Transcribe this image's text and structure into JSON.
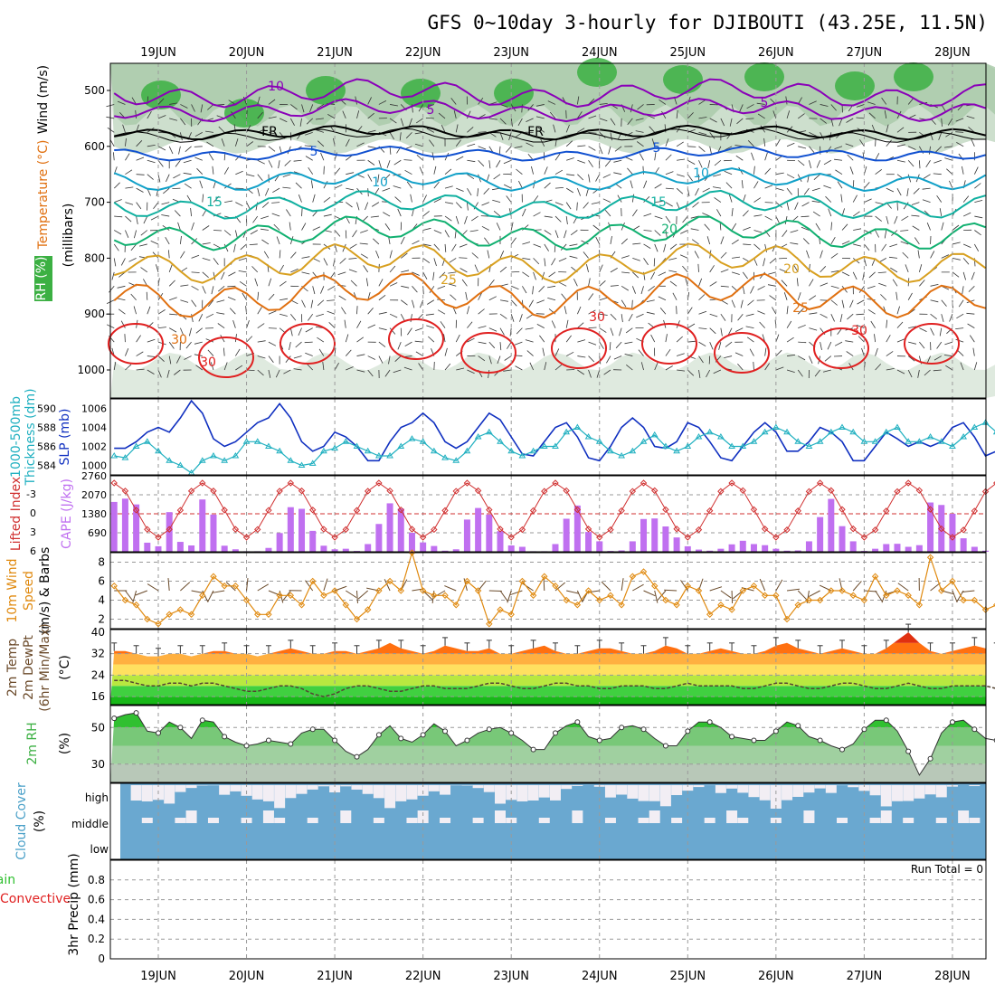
{
  "title": "GFS 0~10day 3-hourly for DJIBOUTI (43.25E, 11.5N)",
  "dates": [
    "19JUN",
    "20JUN",
    "21JUN",
    "22JUN",
    "23JUN",
    "24JUN",
    "25JUN",
    "26JUN",
    "27JUN",
    "28JUN"
  ],
  "colors": {
    "rh_green": "#3cb043",
    "rh_light": "#cfe3cf",
    "t_purple": "#8a00b8",
    "t_black": "#000000",
    "t_blue": "#1050d0",
    "t_cyan": "#10a0c8",
    "t_teal": "#10b0a0",
    "t_green": "#10b070",
    "t_gold": "#d8a020",
    "t_orange": "#e07010",
    "t_red": "#e02020",
    "slp": "#1030c0",
    "thick": "#20b0c0",
    "cape": "#c070f0",
    "li": "#d03030",
    "wind10": "#e08a10",
    "cloud": "#6aa8d0",
    "cloud_clear": "#f2eef4"
  },
  "panels": {
    "upper": {
      "label_rh": "RH (%)",
      "label_temp": "Temperature (°C)",
      "label_wind": "Wind (m/s)",
      "label_units": "(millibars)",
      "yticks": [
        "500",
        "600",
        "700",
        "800",
        "900",
        "1000"
      ],
      "contour_labels": [
        "10",
        "5",
        "FR",
        "5",
        "10",
        "15",
        "20",
        "25",
        "30",
        "5",
        "FR",
        "5",
        "10",
        "15",
        "20",
        "25",
        "30",
        "30",
        "30"
      ]
    },
    "slp": {
      "label_left": "1000-500mb",
      "label_left2": "Thickness (dm)",
      "label_right": "SLP (mb)",
      "yticks_left": [
        "590",
        "588",
        "586",
        "584"
      ],
      "yticks_right": [
        "1006",
        "1004",
        "1002",
        "1000"
      ]
    },
    "cape": {
      "label_li": "Lifted Index",
      "label_cape": "CAPE (J/kg)",
      "yticks_li": [
        "-3",
        "0",
        "3",
        "6"
      ],
      "yticks_cape": [
        "2760",
        "2070",
        "1380",
        "690"
      ]
    },
    "wind10": {
      "label1": "10m Wind",
      "label2": "Speed",
      "label3": "(m/s) & Barbs",
      "yticks": [
        "8",
        "6",
        "4",
        "2"
      ]
    },
    "temp2m": {
      "label1": "2m Temp",
      "label2": "2m DewPt",
      "label3": "(6hr Min/Max)",
      "label4": "(°C)",
      "yticks": [
        "40",
        "32",
        "24",
        "16"
      ]
    },
    "rh2m": {
      "label1": "2m RH",
      "label2": "(%)",
      "yticks": [
        "50",
        "30"
      ]
    },
    "cloud": {
      "label1": "Cloud Cover",
      "label2": "(%)",
      "levels": [
        "high",
        "middle",
        "low"
      ]
    },
    "precip": {
      "label1": "Total / Rain",
      "label2": "Convective",
      "label3": "3hr Precip (mm)",
      "yticks": [
        "0.8",
        "0.6",
        "0.4",
        "0.2",
        "0"
      ],
      "run_total": "Run Total = 0"
    }
  },
  "chart_data": {
    "type": "line",
    "x_start": "18JUN 12Z",
    "x_step_hours": 3,
    "series": [
      {
        "name": "SLP (mb)",
        "values": [
          1001.8,
          1001.8,
          1002.5,
          1003.5,
          1004.0,
          1003.5,
          1005.0,
          1006.8,
          1005.5,
          1002.8,
          1002.0,
          1002.5,
          1003.5,
          1004.5,
          1005.0,
          1006.5,
          1005.0,
          1002.5,
          1001.5,
          1002.0,
          1003.5,
          1003.0,
          1002.0,
          1000.5,
          1000.5,
          1002.5,
          1004.0,
          1004.5,
          1005.5,
          1004.5,
          1002.5,
          1001.8,
          1002.5,
          1004.0,
          1005.5,
          1004.8,
          1003.0,
          1001.2,
          1001.0,
          1002.5,
          1004.0,
          1004.5,
          1003.0,
          1000.8,
          1000.5,
          1002.0,
          1004.0,
          1005.0,
          1004.0,
          1002.0,
          1001.8,
          1002.5,
          1004.5,
          1004.0,
          1002.5,
          1000.8,
          1000.5,
          1002.0,
          1003.5,
          1004.5,
          1003.5,
          1001.5,
          1001.5,
          1002.5,
          1004.0,
          1003.5,
          1002.5,
          1000.5,
          1000.5,
          1002.0,
          1003.5,
          1002.8,
          1002.0,
          1002.5,
          1002.0,
          1002.5,
          1004.0,
          1004.5,
          1003.0,
          1001.0,
          1001.5,
          1003.0,
          1002.5,
          1002.0,
          1000.5,
          1000.0,
          1002.0,
          1002.5,
          1002.0,
          1001.0,
          1000.0,
          1000.5,
          1001.5
        ]
      },
      {
        "name": "1000-500mb Thickness (dm)",
        "values": [
          585.0,
          584.8,
          586.0,
          586.5,
          585.5,
          584.5,
          584.0,
          583.2,
          584.5,
          585.0,
          584.5,
          585.0,
          586.5,
          586.5,
          586.0,
          585.5,
          584.5,
          584.0,
          584.2,
          585.5,
          585.8,
          586.5,
          586.0,
          585.5,
          585.0,
          585.0,
          586.0,
          586.8,
          586.5,
          585.5,
          584.8,
          584.5,
          585.5,
          587.0,
          587.5,
          586.5,
          585.5,
          585.0,
          585.5,
          586.0,
          586.0,
          587.5,
          588.0,
          587.0,
          586.5,
          585.5,
          585.0,
          585.5,
          586.5,
          587.2,
          586.0,
          585.5,
          586.0,
          587.0,
          587.5,
          587.0,
          586.0,
          586.0,
          586.5,
          587.5,
          588.0,
          587.5,
          586.5,
          586.0,
          586.5,
          587.5,
          588.0,
          587.5,
          586.5,
          586.5,
          587.5,
          588.0,
          586.5,
          586.5,
          587.0,
          586.5,
          586.0,
          587.0,
          588.0,
          588.5,
          587.5,
          586.5,
          587.0,
          588.0,
          588.5,
          589.0,
          590.0,
          589.0,
          588.0,
          587.5,
          587.5,
          588.0,
          588.0
        ]
      },
      {
        "name": "CAPE (J/kg)",
        "values": [
          1810,
          1930,
          1720,
          330,
          200,
          1440,
          360,
          230,
          1900,
          1350,
          220,
          90,
          20,
          20,
          140,
          680,
          1620,
          1560,
          760,
          220,
          90,
          110,
          30,
          280,
          1010,
          1760,
          1570,
          690,
          340,
          210,
          40,
          90,
          1170,
          1590,
          1350,
          750,
          230,
          180,
          20,
          20,
          280,
          1200,
          1680,
          720,
          380,
          30,
          50,
          380,
          1190,
          1210,
          920,
          520,
          200,
          80,
          40,
          110,
          270,
          400,
          280,
          240,
          110,
          40,
          50,
          380,
          1260,
          1920,
          930,
          380,
          30,
          110,
          280,
          290,
          180,
          240,
          1790,
          1700,
          1380,
          490,
          180,
          40,
          20,
          30,
          650,
          1210,
          1300,
          320,
          40,
          20,
          20,
          20,
          140,
          400
        ]
      },
      {
        "name": "10m Wind Speed (m/s)",
        "values": [
          5.5,
          4.0,
          3.5,
          2.0,
          1.5,
          2.5,
          3.0,
          2.5,
          4.5,
          6.5,
          5.5,
          5.5,
          4.0,
          2.5,
          2.5,
          4.5,
          4.5,
          3.5,
          6.0,
          4.5,
          5.0,
          3.5,
          2.0,
          3.0,
          5.0,
          6.0,
          5.0,
          9.0,
          5.0,
          4.5,
          4.5,
          3.5,
          6.0,
          5.0,
          1.5,
          3.0,
          2.5,
          6.0,
          4.5,
          6.5,
          5.5,
          4.0,
          3.5,
          5.0,
          4.0,
          4.5,
          3.5,
          6.5,
          7.0,
          5.5,
          4.0,
          3.5,
          5.5,
          5.0,
          2.5,
          3.5,
          3.0,
          5.0,
          5.5,
          4.5,
          4.5,
          2.0,
          3.5,
          4.0,
          4.0,
          5.0,
          5.0,
          4.5,
          4.0,
          6.5,
          4.5,
          5.0,
          4.5,
          3.5,
          8.5,
          5.0,
          6.0,
          4.0,
          4.0,
          3.0,
          3.5,
          4.5,
          5.5,
          4.5,
          4.5,
          2.0,
          5.0,
          4.5,
          2.0,
          8.0,
          4.0,
          4.5,
          5.5
        ]
      },
      {
        "name": "2m Temp (°C)",
        "values": [
          33,
          33,
          32,
          31,
          31,
          32,
          32,
          31,
          32,
          33,
          33,
          32,
          32,
          31,
          32,
          33,
          34,
          33,
          32,
          32,
          33,
          33,
          32,
          33,
          34,
          36,
          34,
          33,
          32,
          33,
          35,
          34,
          33,
          33,
          34,
          32,
          32,
          33,
          34,
          35,
          33,
          32,
          32,
          33,
          34,
          34,
          33,
          32,
          32,
          33,
          35,
          34,
          32,
          32,
          33,
          34,
          33,
          32,
          32,
          33,
          35,
          36,
          34,
          33,
          32,
          33,
          34,
          33,
          32,
          32,
          34,
          37,
          40,
          36,
          33,
          32,
          33,
          34,
          35,
          34,
          33,
          32,
          32,
          34,
          36,
          35,
          33,
          33,
          32,
          32,
          34,
          36,
          37
        ]
      },
      {
        "name": "2m DewPt (°C)",
        "values": [
          22,
          22,
          21,
          20,
          20,
          21,
          21,
          20,
          21,
          21,
          20,
          19,
          18,
          18,
          19,
          20,
          20,
          19,
          17,
          16,
          17,
          19,
          20,
          20,
          19,
          18,
          18,
          19,
          20,
          20,
          19,
          19,
          19,
          20,
          21,
          21,
          20,
          19,
          19,
          20,
          21,
          21,
          20,
          20,
          19,
          19,
          20,
          20,
          20,
          19,
          19,
          20,
          21,
          20,
          20,
          20,
          20,
          19,
          19,
          20,
          21,
          21,
          20,
          19,
          19,
          20,
          21,
          21,
          20,
          19,
          19,
          20,
          21,
          20,
          19,
          19,
          20,
          20,
          20,
          20,
          19,
          19,
          20,
          22,
          22,
          21,
          20,
          19,
          19,
          19,
          20,
          19,
          19
        ]
      },
      {
        "name": "2m RH (%)",
        "values": [
          55,
          57,
          58,
          48,
          47,
          53,
          50,
          44,
          54,
          53,
          45,
          42,
          40,
          41,
          43,
          42,
          41,
          47,
          49,
          49,
          43,
          37,
          34,
          38,
          46,
          51,
          44,
          42,
          46,
          52,
          48,
          40,
          43,
          47,
          49,
          50,
          47,
          43,
          38,
          38,
          47,
          51,
          53,
          45,
          43,
          44,
          50,
          51,
          49,
          44,
          40,
          40,
          48,
          53,
          53,
          50,
          45,
          44,
          43,
          43,
          48,
          53,
          51,
          45,
          43,
          40,
          38,
          41,
          49,
          54,
          54,
          48,
          37,
          24,
          33,
          47,
          53,
          54,
          49,
          44,
          43,
          40,
          43,
          48,
          55,
          52,
          46,
          45,
          44,
          46,
          48,
          45,
          40
        ]
      },
      {
        "name": "3hr Precip (mm)",
        "values": [
          0,
          0,
          0,
          0,
          0,
          0,
          0,
          0,
          0,
          0,
          0,
          0,
          0,
          0,
          0,
          0,
          0,
          0,
          0,
          0,
          0,
          0,
          0,
          0,
          0,
          0,
          0,
          0,
          0,
          0,
          0,
          0,
          0,
          0,
          0,
          0,
          0,
          0,
          0,
          0,
          0,
          0,
          0,
          0,
          0,
          0,
          0,
          0,
          0,
          0,
          0,
          0,
          0,
          0,
          0,
          0,
          0,
          0,
          0,
          0,
          0,
          0,
          0,
          0,
          0,
          0,
          0,
          0,
          0,
          0,
          0,
          0,
          0,
          0,
          0,
          0,
          0,
          0,
          0,
          0,
          0,
          0,
          0,
          0,
          0,
          0,
          0,
          0,
          0,
          0,
          0,
          0,
          0
        ]
      }
    ],
    "ylim_slp": [
      999,
      1007
    ],
    "ylim_thickness": [
      583,
      591
    ],
    "ylim_cape": [
      0,
      2760
    ],
    "ylim_wind10": [
      1,
      9
    ],
    "ylim_temp2m": [
      13,
      41
    ],
    "ylim_rh2m": [
      20,
      62
    ],
    "ylim_precip": [
      0,
      1
    ],
    "grid": true
  }
}
